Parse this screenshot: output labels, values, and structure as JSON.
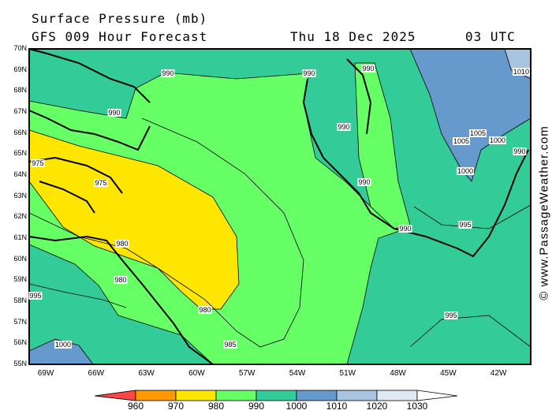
{
  "header": {
    "title": "Surface Pressure (mb)",
    "subtitle": "GFS 009 Hour Forecast",
    "date": "Thu 18 Dec 2025",
    "time": "03 UTC"
  },
  "axes": {
    "lat": [
      "70N",
      "69N",
      "68N",
      "67N",
      "66N",
      "65N",
      "64N",
      "63N",
      "62N",
      "61N",
      "60N",
      "59N",
      "58N",
      "57N",
      "56N",
      "55N"
    ],
    "lon": [
      "69W",
      "66W",
      "63W",
      "60W",
      "57W",
      "54W",
      "51W",
      "48W",
      "45W",
      "42W"
    ]
  },
  "contours": {
    "labels": [
      "990",
      "990",
      "990",
      "1010",
      "990",
      "990",
      "1005",
      "1005",
      "1000",
      "990",
      "975",
      "975",
      "1000",
      "990",
      "990",
      "995",
      "980",
      "980",
      "995",
      "980",
      "995",
      "985",
      "1000"
    ]
  },
  "legend": {
    "labels": [
      "960",
      "970",
      "980",
      "990",
      "1000",
      "1010",
      "1020",
      "1030"
    ],
    "colors": [
      "#ff4444",
      "#ff9900",
      "#ffe600",
      "#66ff66",
      "#33cc99",
      "#6699cc",
      "#a8c4e0",
      "#e0e8f4",
      "#ffffff"
    ]
  },
  "credit": "© www.PassageWeather.com"
}
